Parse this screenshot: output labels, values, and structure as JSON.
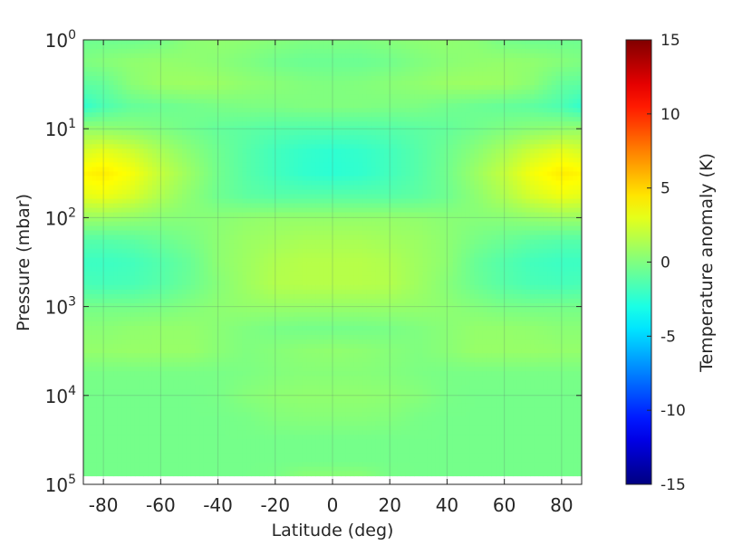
{
  "chart_data": {
    "type": "heatmap",
    "xlabel": "Latitude (deg)",
    "ylabel": "Pressure (mbar)",
    "colorbar_label": "Temperature anomaly (K)",
    "colormap": "jet",
    "xlim": [
      -87,
      87
    ],
    "ylim": [
      1,
      100000
    ],
    "y_scale": "log",
    "y_reversed": true,
    "grid": true,
    "x_ticks": [
      -80,
      -60,
      -40,
      -20,
      0,
      20,
      40,
      60,
      80
    ],
    "x_tick_labels": [
      "-80",
      "-60",
      "-40",
      "-20",
      "0",
      "20",
      "40",
      "60",
      "80"
    ],
    "y_ticks": [
      1,
      10,
      100,
      1000,
      10000,
      100000
    ],
    "y_tick_labels": [
      {
        "base": "10",
        "exp": "0"
      },
      {
        "base": "10",
        "exp": "1"
      },
      {
        "base": "10",
        "exp": "2"
      },
      {
        "base": "10",
        "exp": "3"
      },
      {
        "base": "10",
        "exp": "4"
      },
      {
        "base": "10",
        "exp": "5"
      }
    ],
    "clim": [
      -15,
      15
    ],
    "colorbar_ticks": [
      "15",
      "10",
      "5",
      "0",
      "-5",
      "-10",
      "-15"
    ],
    "data_pressure_max": 80000,
    "latitudes": [
      -87,
      -80,
      -70,
      -60,
      -50,
      -40,
      -30,
      -20,
      -10,
      0,
      10,
      20,
      30,
      40,
      50,
      60,
      70,
      80,
      87
    ],
    "log10_pressures": [
      0,
      0.25,
      0.5,
      0.75,
      1.0,
      1.25,
      1.5,
      1.75,
      2.0,
      2.25,
      2.5,
      2.75,
      3.0,
      3.25,
      3.5,
      3.75,
      4.0,
      4.25,
      4.5,
      4.75,
      4.9
    ],
    "values": [
      [
        -0.5,
        -0.5,
        -0.5,
        -0.3,
        0.3,
        0.5,
        0.4,
        0.2,
        0.0,
        0.0,
        0.0,
        0.2,
        0.4,
        0.5,
        0.3,
        -0.3,
        -0.5,
        -0.5,
        -0.5
      ],
      [
        0.0,
        0.2,
        0.5,
        0.6,
        0.5,
        0.3,
        0.0,
        -0.4,
        -0.6,
        -0.6,
        -0.6,
        -0.4,
        0.0,
        0.3,
        0.5,
        0.6,
        0.5,
        0.2,
        0.0
      ],
      [
        -1.0,
        -0.8,
        0.3,
        0.8,
        0.9,
        0.8,
        0.5,
        0.3,
        0.1,
        0.0,
        0.1,
        0.3,
        0.5,
        0.8,
        0.9,
        0.8,
        0.3,
        -0.8,
        -1.0
      ],
      [
        -2.3,
        -1.5,
        -0.8,
        -0.6,
        -0.4,
        -0.2,
        -0.1,
        -0.1,
        0.0,
        0.0,
        0.0,
        -0.1,
        -0.1,
        -0.4,
        -0.6,
        -0.8,
        -1.0,
        -1.5,
        -2.3
      ],
      [
        0.6,
        0.5,
        0.3,
        0.0,
        -0.4,
        -0.8,
        -1.0,
        -1.2,
        -1.3,
        -1.3,
        -1.3,
        -1.2,
        -1.0,
        -0.8,
        -0.4,
        0.0,
        0.3,
        0.5,
        0.6
      ],
      [
        2.5,
        3.0,
        2.3,
        1.2,
        0.3,
        -0.5,
        -1.2,
        -1.8,
        -2.2,
        -2.4,
        -2.2,
        -1.8,
        -1.2,
        -0.5,
        0.3,
        1.2,
        2.3,
        3.0,
        2.5
      ],
      [
        4.0,
        4.3,
        3.5,
        2.0,
        0.8,
        -0.4,
        -1.2,
        -1.8,
        -2.3,
        -2.5,
        -2.3,
        -1.8,
        -1.2,
        -0.4,
        0.8,
        2.0,
        3.5,
        4.3,
        4.0
      ],
      [
        3.0,
        3.3,
        2.6,
        1.4,
        0.4,
        -0.5,
        -1.0,
        -1.2,
        -1.2,
        -1.2,
        -1.2,
        -1.2,
        -1.0,
        -0.5,
        0.4,
        1.4,
        2.6,
        3.3,
        3.0
      ],
      [
        0.8,
        0.8,
        0.6,
        0.3,
        0.2,
        0.3,
        0.5,
        0.6,
        0.6,
        0.6,
        0.6,
        0.6,
        0.5,
        0.3,
        0.2,
        0.3,
        0.6,
        0.8,
        0.8
      ],
      [
        -1.2,
        -1.2,
        -1.0,
        -0.6,
        -0.2,
        0.4,
        0.8,
        1.0,
        1.2,
        1.2,
        1.2,
        1.0,
        0.8,
        0.4,
        -0.2,
        -0.6,
        -1.0,
        -1.2,
        -1.2
      ],
      [
        -2.0,
        -2.0,
        -1.8,
        -1.3,
        -0.7,
        0.4,
        0.9,
        1.4,
        1.6,
        1.6,
        1.6,
        1.4,
        0.9,
        0.4,
        -0.7,
        -1.3,
        -1.8,
        -2.0,
        -2.0
      ],
      [
        -1.6,
        -1.7,
        -1.6,
        -1.2,
        -0.6,
        0.2,
        0.9,
        1.5,
        1.6,
        1.6,
        1.6,
        1.5,
        0.9,
        0.2,
        -0.6,
        -1.2,
        -1.6,
        -1.7,
        -1.6
      ],
      [
        -0.3,
        -0.3,
        -0.3,
        -0.2,
        0.1,
        0.4,
        0.6,
        0.7,
        0.7,
        0.7,
        0.7,
        0.7,
        0.6,
        0.4,
        0.1,
        -0.2,
        -0.3,
        -0.3,
        -0.3
      ],
      [
        0.3,
        0.3,
        0.5,
        0.6,
        0.6,
        0.3,
        0.0,
        -0.2,
        -0.3,
        -0.3,
        -0.3,
        -0.2,
        0.0,
        0.3,
        0.6,
        0.6,
        0.5,
        0.3,
        0.3
      ],
      [
        0.6,
        0.6,
        0.7,
        0.7,
        0.7,
        0.3,
        0.0,
        0.2,
        0.4,
        0.5,
        0.4,
        0.2,
        0.0,
        0.3,
        0.7,
        0.7,
        0.7,
        0.6,
        0.6
      ],
      [
        -0.2,
        -0.2,
        -0.2,
        -0.2,
        -0.2,
        -0.2,
        -0.1,
        0.1,
        0.2,
        0.2,
        0.2,
        0.1,
        -0.1,
        -0.2,
        -0.2,
        -0.2,
        -0.2,
        -0.2,
        -0.2
      ],
      [
        -0.3,
        -0.3,
        -0.3,
        -0.3,
        -0.3,
        -0.2,
        0.2,
        0.4,
        0.5,
        0.5,
        0.5,
        0.4,
        0.2,
        -0.2,
        -0.3,
        -0.3,
        -0.3,
        -0.3,
        -0.3
      ],
      [
        -0.3,
        -0.3,
        -0.3,
        -0.3,
        -0.3,
        -0.3,
        -0.2,
        0.1,
        0.2,
        0.2,
        0.2,
        0.1,
        -0.2,
        -0.3,
        -0.3,
        -0.3,
        -0.3,
        -0.3,
        -0.3
      ],
      [
        -0.3,
        -0.3,
        -0.3,
        -0.3,
        -0.3,
        -0.3,
        -0.3,
        -0.3,
        -0.3,
        -0.3,
        -0.3,
        -0.3,
        -0.3,
        -0.3,
        -0.3,
        -0.3,
        -0.3,
        -0.3,
        -0.3
      ],
      [
        -0.3,
        -0.3,
        -0.3,
        -0.3,
        -0.3,
        -0.3,
        -0.3,
        -0.3,
        -0.3,
        -0.3,
        -0.3,
        -0.3,
        -0.3,
        -0.3,
        -0.3,
        -0.3,
        -0.3,
        -0.3,
        -0.3
      ],
      [
        -0.3,
        -0.3,
        -0.3,
        -0.3,
        -0.3,
        -0.3,
        -0.3,
        -0.2,
        0.3,
        0.3,
        0.3,
        -0.2,
        -0.3,
        -0.3,
        -0.3,
        -0.3,
        -0.3,
        -0.3,
        -0.3
      ]
    ]
  }
}
